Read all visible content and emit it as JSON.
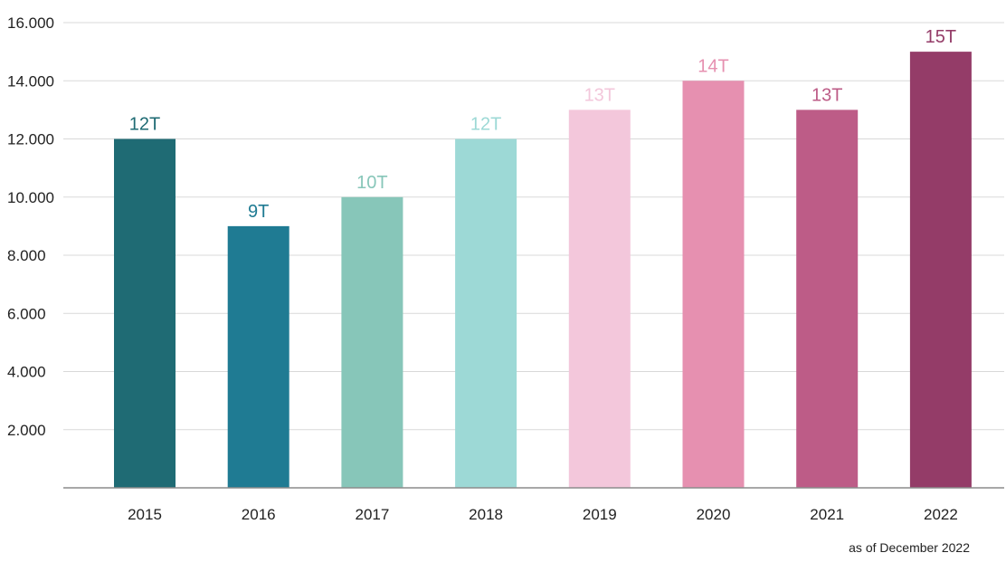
{
  "chart_data": {
    "type": "bar",
    "title": "",
    "xlabel": "",
    "ylabel": "",
    "categories": [
      "2015",
      "2016",
      "2017",
      "2018",
      "2019",
      "2020",
      "2021",
      "2022"
    ],
    "values": [
      12000,
      9000,
      10000,
      12000,
      13000,
      14000,
      13000,
      15000
    ],
    "data_labels": [
      "12T",
      "9T",
      "10T",
      "12T",
      "13T",
      "14T",
      "13T",
      "15T"
    ],
    "colors": [
      "#1f6b74",
      "#1f7b93",
      "#87c6b9",
      "#9dd9d6",
      "#f3c7db",
      "#e690b0",
      "#bd5c87",
      "#943c68"
    ],
    "ylim": [
      0,
      16000
    ],
    "yticks": [
      2000,
      4000,
      6000,
      8000,
      10000,
      12000,
      14000,
      16000
    ],
    "ytick_labels": [
      "2.000",
      "4.000",
      "6.000",
      "8.000",
      "10.000",
      "12.000",
      "14.000",
      "16.000"
    ],
    "grid": true,
    "gridline_color": "#d9d9d9",
    "axis_color": "#8c8c8c"
  },
  "footnote": "as of December 2022"
}
